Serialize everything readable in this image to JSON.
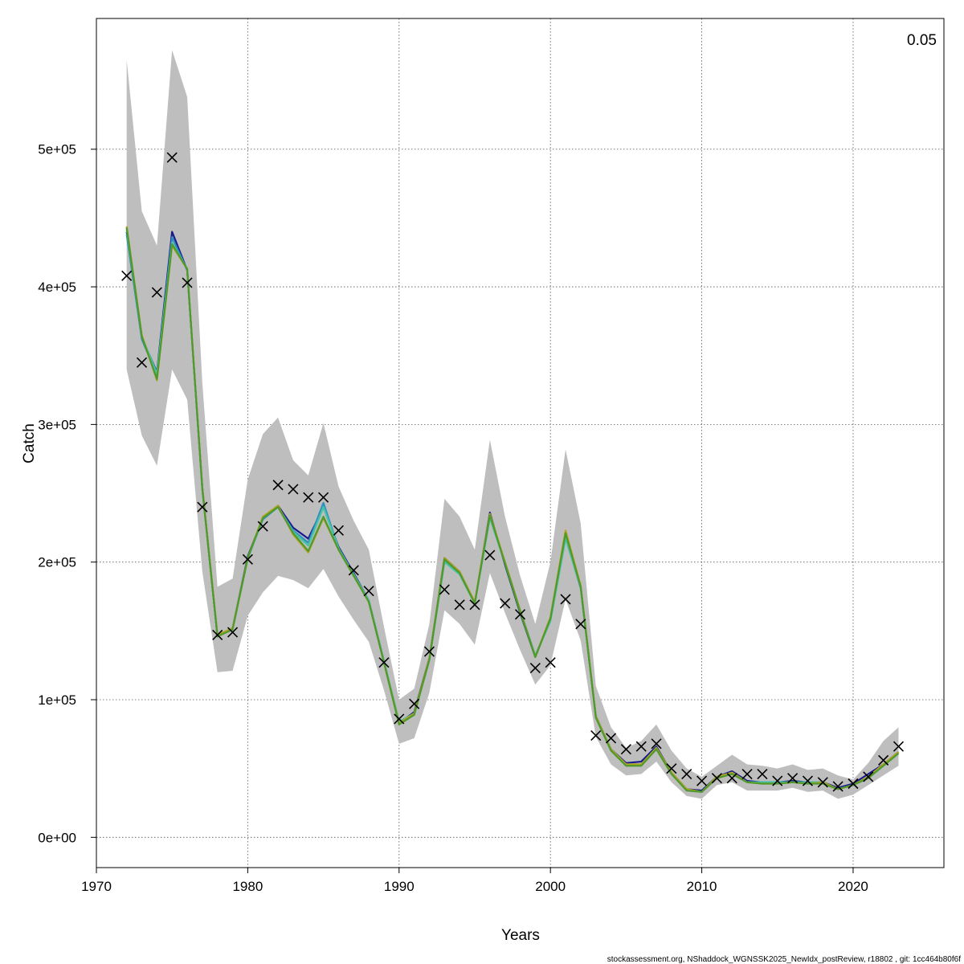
{
  "chart_data": {
    "type": "line",
    "title": "",
    "xlabel": "Years",
    "ylabel": "Catch",
    "xlim": [
      1970,
      2026
    ],
    "ylim": [
      -22000,
      595000
    ],
    "grid": true,
    "corner_label": "0.05",
    "x_ticks": [
      1970,
      1980,
      1990,
      2000,
      2010,
      2020
    ],
    "x_tick_labels": [
      "1970",
      "1980",
      "1990",
      "2000",
      "2010",
      "2020"
    ],
    "y_ticks": [
      0,
      100000,
      200000,
      300000,
      400000,
      500000
    ],
    "y_tick_labels": [
      "0e+00",
      "1e+05",
      "2e+05",
      "3e+05",
      "4e+05",
      "5e+05"
    ],
    "years": [
      1972,
      1973,
      1974,
      1975,
      1976,
      1977,
      1978,
      1979,
      1980,
      1981,
      1982,
      1983,
      1984,
      1985,
      1986,
      1987,
      1988,
      1989,
      1990,
      1991,
      1992,
      1993,
      1994,
      1995,
      1996,
      1997,
      1998,
      1999,
      2000,
      2001,
      2002,
      2003,
      2004,
      2005,
      2006,
      2007,
      2008,
      2009,
      2010,
      2011,
      2012,
      2013,
      2014,
      2015,
      2016,
      2017,
      2018,
      2019,
      2020,
      2021,
      2022,
      2023
    ],
    "observed": [
      408000,
      345000,
      396000,
      494000,
      403000,
      240000,
      147000,
      149000,
      202000,
      226000,
      256000,
      253000,
      247000,
      247000,
      223000,
      194000,
      179000,
      127000,
      86000,
      97000,
      135000,
      180000,
      169000,
      169000,
      205000,
      170000,
      162000,
      123000,
      127000,
      173000,
      155000,
      74000,
      72000,
      64000,
      66000,
      68000,
      50000,
      46000,
      41000,
      43000,
      43000,
      46000,
      46000,
      41000,
      43000,
      41000,
      40000,
      37000,
      39000,
      44000,
      56000,
      66000
    ],
    "band_upper": [
      565000,
      455000,
      430000,
      572000,
      538000,
      330000,
      182000,
      188000,
      260000,
      293000,
      305000,
      274000,
      263000,
      301000,
      255000,
      230000,
      209000,
      153000,
      100000,
      108000,
      155000,
      246000,
      233000,
      209000,
      289000,
      233000,
      190000,
      155000,
      200000,
      282000,
      228000,
      110000,
      80000,
      65000,
      70000,
      82000,
      63000,
      50000,
      44000,
      52000,
      60000,
      53000,
      52000,
      50000,
      53000,
      49000,
      50000,
      45000,
      42000,
      54000,
      70000,
      80000
    ],
    "band_lower": [
      340000,
      292000,
      270000,
      340000,
      318000,
      193000,
      120000,
      121000,
      161000,
      178000,
      190000,
      187000,
      181000,
      195000,
      175000,
      158000,
      142000,
      107000,
      68000,
      72000,
      105000,
      165000,
      155000,
      140000,
      192000,
      163000,
      136000,
      111000,
      125000,
      173000,
      143000,
      73000,
      53000,
      45000,
      46000,
      55000,
      40000,
      30000,
      28000,
      38000,
      40000,
      34000,
      34000,
      34000,
      36000,
      33000,
      34000,
      28000,
      31000,
      38000,
      45000,
      52000
    ],
    "series": [
      {
        "color": "#1a1a8c",
        "values": [
          440000,
          363000,
          338000,
          440000,
          412000,
          254000,
          146000,
          152000,
          204000,
          232000,
          241000,
          225000,
          217000,
          240000,
          211000,
          192000,
          172000,
          128000,
          83000,
          91000,
          130000,
          203000,
          193000,
          170000,
          236000,
          198000,
          163000,
          131000,
          159000,
          222000,
          182000,
          88000,
          64000,
          54000,
          55000,
          66000,
          47000,
          35000,
          34000,
          44000,
          48000,
          41000,
          40000,
          40000,
          41000,
          40000,
          40000,
          36000,
          39000,
          46000,
          53000,
          62000
        ]
      },
      {
        "color": "#2c8fbf",
        "values": [
          438000,
          362000,
          336000,
          436000,
          412000,
          253000,
          146000,
          152000,
          203000,
          231000,
          240000,
          223000,
          214000,
          243000,
          210000,
          191000,
          172000,
          128000,
          84000,
          90000,
          129000,
          201000,
          192000,
          170000,
          233000,
          200000,
          165000,
          132000,
          158000,
          218000,
          181000,
          88000,
          64000,
          53000,
          53000,
          65000,
          47000,
          34000,
          33000,
          44000,
          47000,
          40000,
          40000,
          40000,
          40000,
          40000,
          40000,
          35000,
          38000,
          44000,
          53000,
          62000
        ]
      },
      {
        "color": "#47c4a8",
        "values": [
          442000,
          364000,
          337000,
          432000,
          413000,
          253000,
          147000,
          152000,
          202000,
          232000,
          240000,
          222000,
          212000,
          240000,
          210000,
          191000,
          172000,
          128000,
          84000,
          90000,
          129000,
          200000,
          191000,
          170000,
          232000,
          199000,
          164000,
          132000,
          157000,
          217000,
          182000,
          88000,
          64000,
          53000,
          53000,
          65000,
          47000,
          35000,
          33000,
          44000,
          47000,
          40000,
          40000,
          40000,
          40000,
          40000,
          40000,
          35000,
          38000,
          43000,
          52000,
          61000
        ]
      },
      {
        "color": "#b5a21d",
        "values": [
          444000,
          365000,
          332000,
          430000,
          413000,
          254000,
          147000,
          152000,
          203000,
          233000,
          241000,
          220000,
          207000,
          232000,
          209000,
          190000,
          171000,
          127000,
          83000,
          90000,
          130000,
          203000,
          193000,
          171000,
          235000,
          200000,
          165000,
          131000,
          160000,
          223000,
          183000,
          88000,
          64000,
          53000,
          53000,
          65000,
          47000,
          35000,
          33000,
          44000,
          47000,
          40000,
          39000,
          39000,
          40000,
          39000,
          40000,
          35000,
          38000,
          44000,
          53000,
          62000
        ]
      },
      {
        "color": "#4f9a2a",
        "values": [
          443000,
          364000,
          333000,
          431000,
          413000,
          253000,
          146000,
          151000,
          203000,
          232000,
          240000,
          221000,
          208000,
          233000,
          209000,
          190000,
          171000,
          127000,
          82000,
          89000,
          129000,
          202000,
          192000,
          170000,
          234000,
          199000,
          164000,
          131000,
          159000,
          221000,
          182000,
          87000,
          63000,
          52000,
          52000,
          64000,
          46000,
          34000,
          33000,
          43000,
          46000,
          40000,
          39000,
          39000,
          40000,
          39000,
          39000,
          35000,
          38000,
          43000,
          52000,
          61000
        ]
      }
    ]
  },
  "footer": {
    "text": "stockassessment.org, NShaddock_WGNSSK2025_NewIdx_postReview, r18802 , git: 1cc464b80f6f"
  }
}
